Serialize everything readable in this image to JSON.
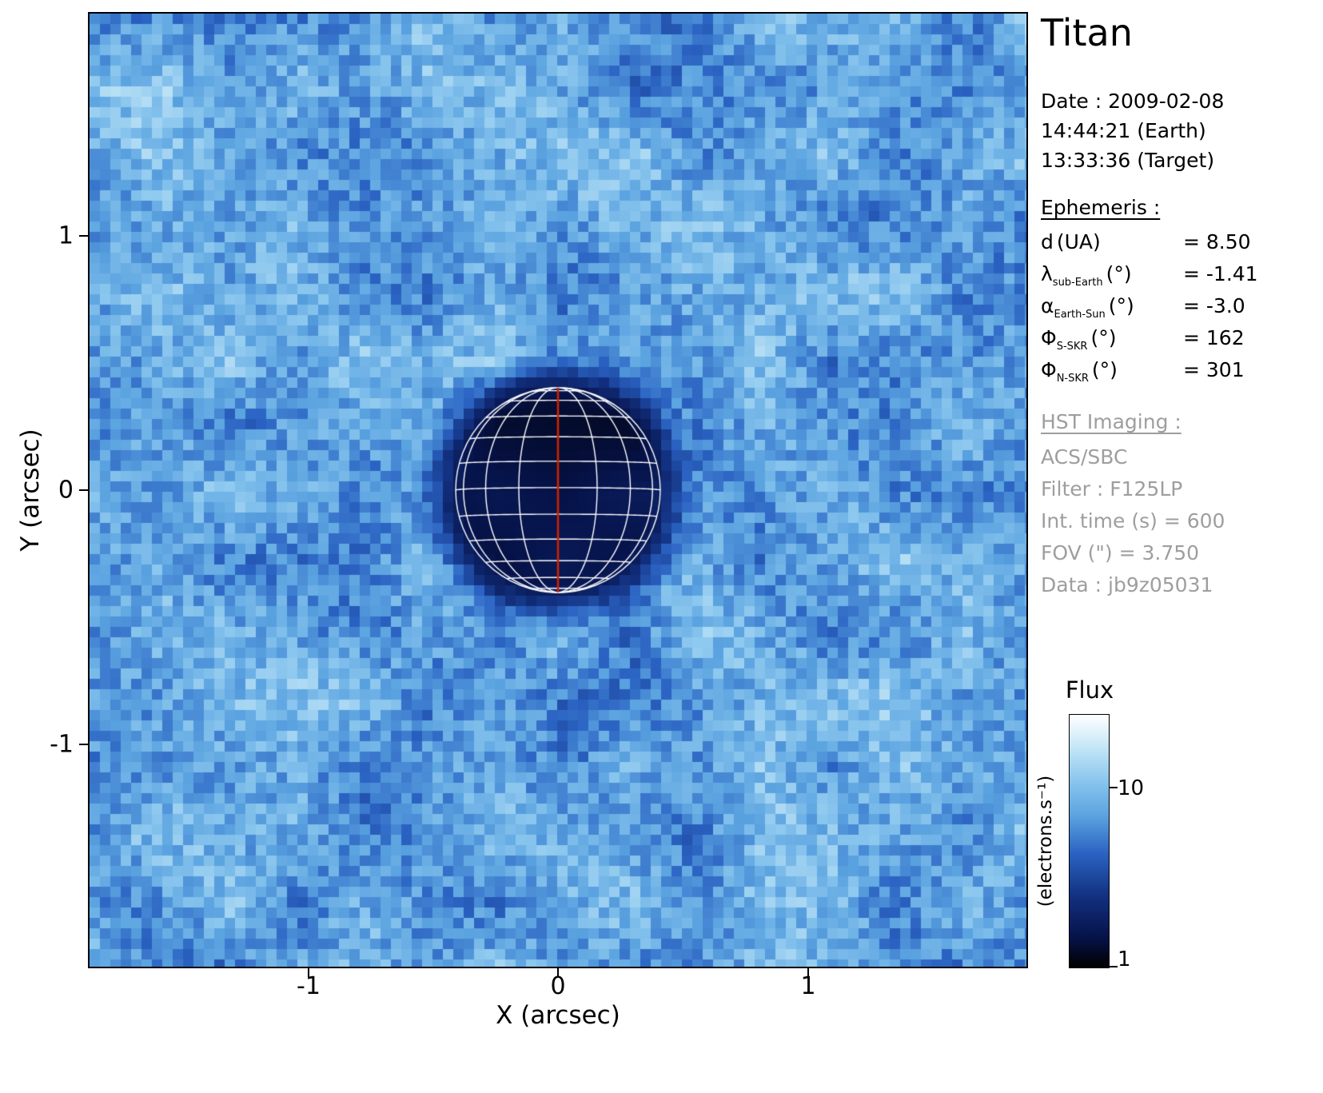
{
  "title": "Titan",
  "plot": {
    "xlabel": "X (arcsec)",
    "ylabel": "Y (arcsec)",
    "x_ticks": [
      "-1",
      "0",
      "1"
    ],
    "y_ticks": [
      "1",
      "0",
      "-1"
    ]
  },
  "info": {
    "date": "Date : 2009-02-08",
    "time_earth": "14:44:21 (Earth)",
    "time_target": "13:33:36 (Target)",
    "ephemeris_header": "Ephemeris :",
    "ephemeris": [
      {
        "symbol": "d",
        "sub": "",
        "unit": "(UA)",
        "value": "= 8.50"
      },
      {
        "symbol": "λ",
        "sub": "sub-Earth",
        "unit": "(°)",
        "value": "= -1.41"
      },
      {
        "symbol": "α",
        "sub": "Earth-Sun",
        "unit": "(°)",
        "value": "= -3.0"
      },
      {
        "symbol": "Φ",
        "sub": "S-SKR",
        "unit": "(°)",
        "value": "= 162"
      },
      {
        "symbol": "Φ",
        "sub": "N-SKR",
        "unit": "(°)",
        "value": "= 301"
      }
    ],
    "hst_header": "HST Imaging :",
    "hst_lines": [
      "ACS/SBC",
      "Filter : F125LP",
      "Int. time (s) = 600",
      "FOV (\") = 3.750",
      "Data : jb9z05031"
    ]
  },
  "colorbar": {
    "title": "Flux",
    "unit": "(electrons.s⁻¹)",
    "tick_top": "10",
    "tick_bottom": "1",
    "colormap_stops": [
      {
        "t": 0.0,
        "color": "#000000"
      },
      {
        "t": 0.12,
        "color": "#06134a"
      },
      {
        "t": 0.28,
        "color": "#12307f"
      },
      {
        "t": 0.45,
        "color": "#2a62c2"
      },
      {
        "t": 0.6,
        "color": "#5ba3e0"
      },
      {
        "t": 0.74,
        "color": "#8ac6ee"
      },
      {
        "t": 0.87,
        "color": "#c4e6f7"
      },
      {
        "t": 1.0,
        "color": "#ffffff"
      }
    ]
  },
  "chart_data": {
    "type": "heatmap",
    "title": "Titan — HST ACS/SBC F125LP image, 2009-02-08",
    "xlabel": "X (arcsec)",
    "ylabel": "Y (arcsec)",
    "xlim": [
      -1.875,
      1.875
    ],
    "ylim": [
      -1.875,
      1.875
    ],
    "x_ticks": [
      -1,
      0,
      1
    ],
    "y_ticks": [
      1,
      0,
      -1
    ],
    "flux_scale": "log",
    "flux_range": [
      1,
      25
    ],
    "colorbar_ticks": [
      1,
      10
    ],
    "background": {
      "description": "noisy sky background, light blue",
      "approx_flux": 10
    },
    "disk": {
      "description": "dark Titan disk in absorption at image center",
      "center_arcsec": [
        0,
        0
      ],
      "radius_arcsec": 0.42,
      "approx_flux": 1,
      "overlay": {
        "grid_color": "#ffffff",
        "lat_step_deg": 15,
        "lon_step_deg": 22.5,
        "central_meridian_color": "#cc2200",
        "sub_earth_lat_deg": -1.41
      }
    }
  }
}
